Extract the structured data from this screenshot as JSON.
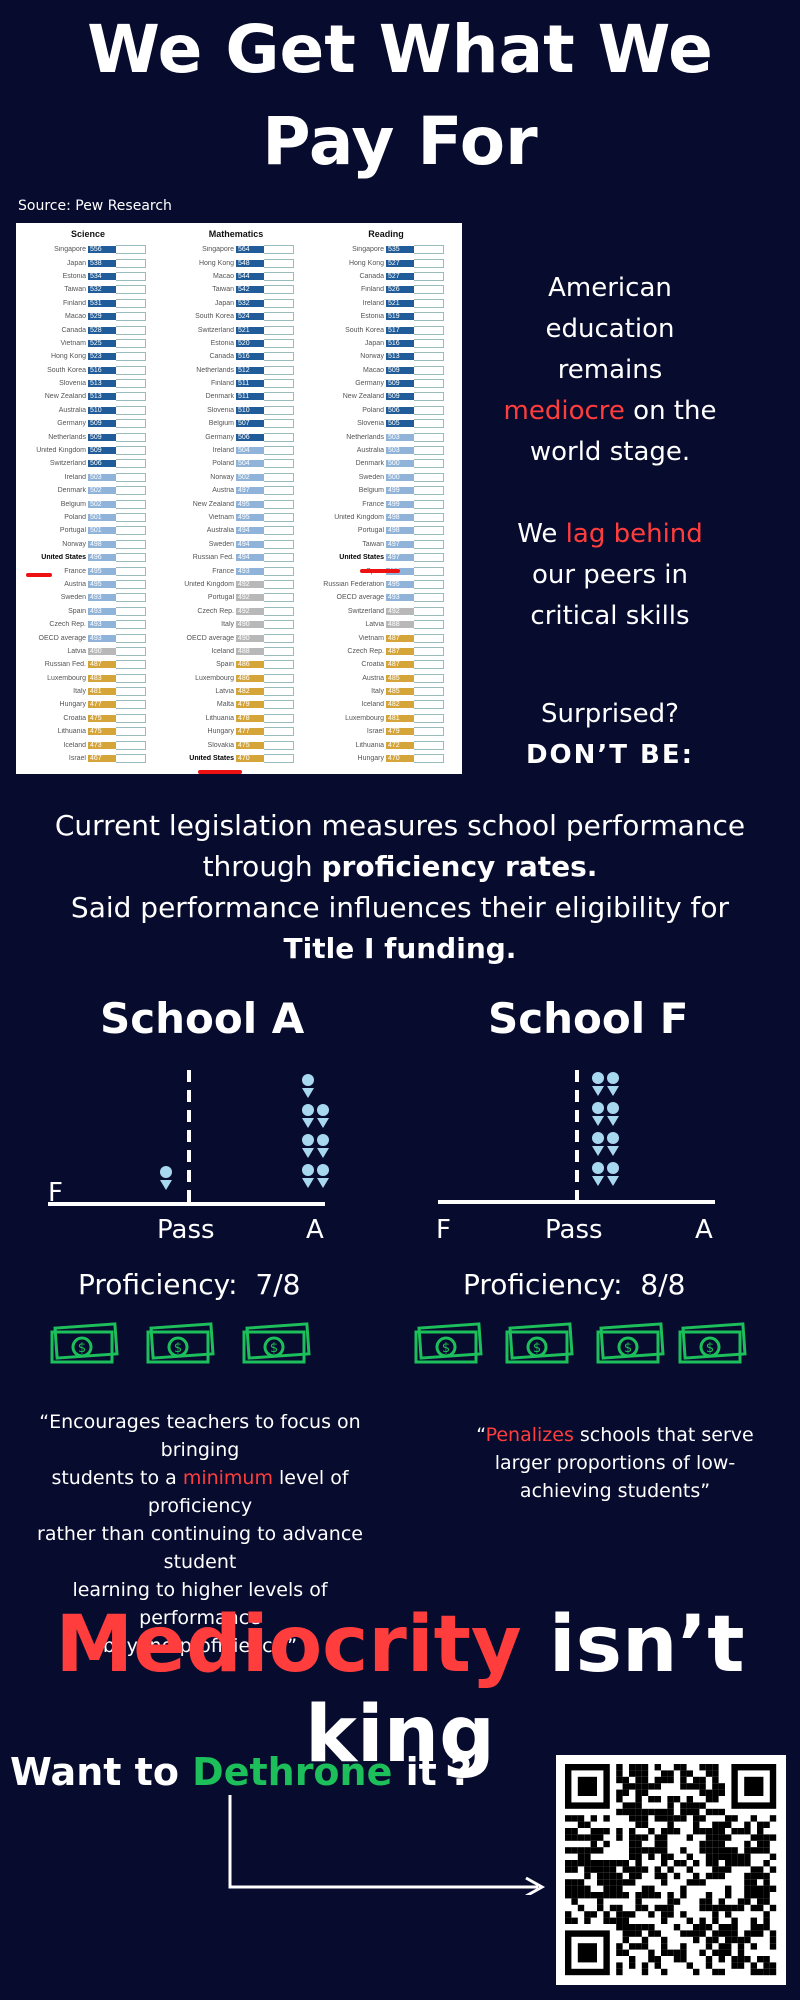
{
  "title_line1": "We Get What We",
  "title_line2": "Pay For",
  "source": "Source: Pew Research",
  "table": {
    "science": {
      "header": "Science",
      "rows": [
        [
          "Singapore",
          "556"
        ],
        [
          "Japan",
          "538"
        ],
        [
          "Estonia",
          "534"
        ],
        [
          "Taiwan",
          "532"
        ],
        [
          "Finland",
          "531"
        ],
        [
          "Macao",
          "529"
        ],
        [
          "Canada",
          "528"
        ],
        [
          "Vietnam",
          "525"
        ],
        [
          "Hong Kong",
          "523"
        ],
        [
          "South Korea",
          "516"
        ],
        [
          "Slovenia",
          "513"
        ],
        [
          "New Zealand",
          "513"
        ],
        [
          "Australia",
          "510"
        ],
        [
          "Germany",
          "509"
        ],
        [
          "Netherlands",
          "509"
        ],
        [
          "United Kingdom",
          "509"
        ],
        [
          "Switzerland",
          "506"
        ],
        [
          "Ireland",
          "503"
        ],
        [
          "Denmark",
          "502"
        ],
        [
          "Belgium",
          "502"
        ],
        [
          "Poland",
          "501"
        ],
        [
          "Portugal",
          "501"
        ],
        [
          "Norway",
          "498"
        ],
        [
          "United States",
          "496"
        ],
        [
          "France",
          "495"
        ],
        [
          "Austria",
          "495"
        ],
        [
          "Sweden",
          "493"
        ],
        [
          "Spain",
          "493"
        ],
        [
          "Czech Rep.",
          "493"
        ],
        [
          "OECD average",
          "493"
        ],
        [
          "Latvia",
          "490"
        ],
        [
          "Russian Fed.",
          "487"
        ],
        [
          "Luxembourg",
          "483"
        ],
        [
          "Italy",
          "481"
        ],
        [
          "Hungary",
          "477"
        ],
        [
          "Croatia",
          "475"
        ],
        [
          "Lithuania",
          "475"
        ],
        [
          "Iceland",
          "473"
        ],
        [
          "Israel",
          "467"
        ]
      ]
    },
    "math": {
      "header": "Mathematics",
      "rows": [
        [
          "Singapore",
          "564"
        ],
        [
          "Hong Kong",
          "548"
        ],
        [
          "Macao",
          "544"
        ],
        [
          "Taiwan",
          "542"
        ],
        [
          "Japan",
          "532"
        ],
        [
          "South Korea",
          "524"
        ],
        [
          "Switzerland",
          "521"
        ],
        [
          "Estonia",
          "520"
        ],
        [
          "Canada",
          "516"
        ],
        [
          "Netherlands",
          "512"
        ],
        [
          "Finland",
          "511"
        ],
        [
          "Denmark",
          "511"
        ],
        [
          "Slovenia",
          "510"
        ],
        [
          "Belgium",
          "507"
        ],
        [
          "Germany",
          "506"
        ],
        [
          "Ireland",
          "504"
        ],
        [
          "Poland",
          "504"
        ],
        [
          "Norway",
          "502"
        ],
        [
          "Austria",
          "497"
        ],
        [
          "New Zealand",
          "495"
        ],
        [
          "Vietnam",
          "495"
        ],
        [
          "Australia",
          "494"
        ],
        [
          "Sweden",
          "494"
        ],
        [
          "Russian Fed.",
          "494"
        ],
        [
          "France",
          "493"
        ],
        [
          "United Kingdom",
          "492"
        ],
        [
          "Portugal",
          "492"
        ],
        [
          "Czech Rep.",
          "492"
        ],
        [
          "Italy",
          "490"
        ],
        [
          "OECD average",
          "490"
        ],
        [
          "Iceland",
          "488"
        ],
        [
          "Spain",
          "486"
        ],
        [
          "Luxembourg",
          "486"
        ],
        [
          "Latvia",
          "482"
        ],
        [
          "Malta",
          "479"
        ],
        [
          "Lithuania",
          "478"
        ],
        [
          "Hungary",
          "477"
        ],
        [
          "Slovakia",
          "475"
        ],
        [
          "United States",
          "470"
        ]
      ]
    },
    "reading": {
      "header": "Reading",
      "rows": [
        [
          "Singapore",
          "535"
        ],
        [
          "Hong Kong",
          "527"
        ],
        [
          "Canada",
          "527"
        ],
        [
          "Finland",
          "526"
        ],
        [
          "Ireland",
          "521"
        ],
        [
          "Estonia",
          "519"
        ],
        [
          "South Korea",
          "517"
        ],
        [
          "Japan",
          "516"
        ],
        [
          "Norway",
          "513"
        ],
        [
          "Macao",
          "509"
        ],
        [
          "Germany",
          "509"
        ],
        [
          "New Zealand",
          "509"
        ],
        [
          "Poland",
          "506"
        ],
        [
          "Slovenia",
          "505"
        ],
        [
          "Netherlands",
          "503"
        ],
        [
          "Australia",
          "503"
        ],
        [
          "Denmark",
          "500"
        ],
        [
          "Sweden",
          "500"
        ],
        [
          "Belgium",
          "499"
        ],
        [
          "France",
          "499"
        ],
        [
          "United Kingdom",
          "498"
        ],
        [
          "Portugal",
          "498"
        ],
        [
          "Taiwan",
          "497"
        ],
        [
          "United States",
          "497"
        ],
        [
          "Spain",
          "496"
        ],
        [
          "Russian Federation",
          "495"
        ],
        [
          "OECD average",
          "493"
        ],
        [
          "Switzerland",
          "492"
        ],
        [
          "Latvia",
          "488"
        ],
        [
          "Vietnam",
          "487"
        ],
        [
          "Czech Rep.",
          "487"
        ],
        [
          "Croatia",
          "487"
        ],
        [
          "Austria",
          "485"
        ],
        [
          "Italy",
          "485"
        ],
        [
          "Iceland",
          "482"
        ],
        [
          "Luxembourg",
          "481"
        ],
        [
          "Israel",
          "479"
        ],
        [
          "Lithuania",
          "472"
        ],
        [
          "Hungary",
          "470"
        ]
      ]
    }
  },
  "side": {
    "p1_a": "American",
    "p1_b": "education",
    "p1_c": "remains",
    "p1_d_red": "mediocre",
    "p1_d_rest": " on the",
    "p1_e": "world stage.",
    "p2_a": "We ",
    "p2_a_red": "lag behind",
    "p2_b": "our peers in",
    "p2_c": "critical skills",
    "p3_a": "Surprised?",
    "p3_b": "DON’T BE:"
  },
  "mid": {
    "l1": "Current legislation measures school performance",
    "l2_a": "through ",
    "l2_b": "proficiency rates.",
    "l3": "Said performance influences their eligibility for",
    "l4": "Title I funding."
  },
  "schoolA": {
    "name": "School A",
    "f": "F",
    "pass": "Pass",
    "a": "A",
    "proficiency_label": "Proficiency:",
    "proficiency_value": "7/8"
  },
  "schoolF": {
    "name": "School F",
    "f": "F",
    "pass": "Pass",
    "a": "A",
    "proficiency_label": "Proficiency:",
    "proficiency_value": "8/8"
  },
  "quoteA": {
    "l1": "“Encourages teachers to focus on bringing",
    "l2_a": "students to a ",
    "l2_red": "minimum",
    "l2_b": " level of proficiency",
    "l3": "rather than continuing to advance student",
    "l4": "learning to higher levels of performance",
    "l5": "beyond proficiency.”"
  },
  "quoteF": {
    "l1_a": "“",
    "l1_red": "Penalizes",
    "l1_b": " schools that serve",
    "l2": "larger proportions of low-",
    "l3": "achieving students”"
  },
  "bottom": {
    "red": "Mediocrity",
    "rest": " isn’t king",
    "want_a": "Want to ",
    "want_green": "Dethrone",
    "want_b": " it ?"
  },
  "colors": {
    "bg": "#070b2e",
    "red": "#ff3d3d",
    "green": "#1dbf5a",
    "bar": "#1f5c99"
  }
}
